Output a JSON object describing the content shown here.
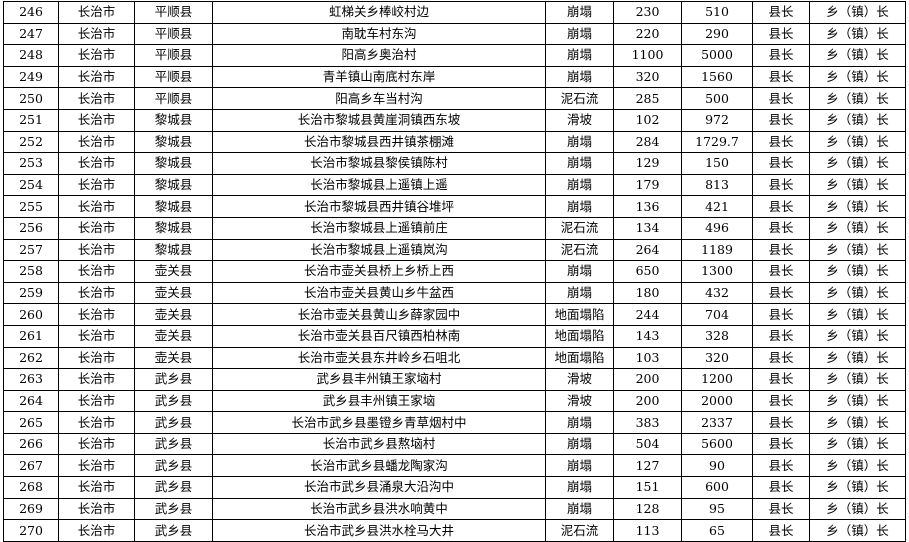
{
  "table": {
    "rows": [
      [
        "246",
        "长治市",
        "平顺县",
        "虹梯关乡棒峧村边",
        "崩塌",
        "230",
        "510",
        "县长",
        "乡（镇）长"
      ],
      [
        "247",
        "长治市",
        "平顺县",
        "南耽车村东沟",
        "崩塌",
        "220",
        "290",
        "县长",
        "乡（镇）长"
      ],
      [
        "248",
        "长治市",
        "平顺县",
        "阳高乡奥治村",
        "崩塌",
        "1100",
        "5000",
        "县长",
        "乡（镇）长"
      ],
      [
        "249",
        "长治市",
        "平顺县",
        "青羊镇山南底村东岸",
        "崩塌",
        "320",
        "1560",
        "县长",
        "乡（镇）长"
      ],
      [
        "250",
        "长治市",
        "平顺县",
        "阳高乡车当村沟",
        "泥石流",
        "285",
        "500",
        "县长",
        "乡（镇）长"
      ],
      [
        "251",
        "长治市",
        "黎城县",
        "长治市黎城县黄崖洞镇西东坡",
        "滑坡",
        "102",
        "972",
        "县长",
        "乡（镇）长"
      ],
      [
        "252",
        "长治市",
        "黎城县",
        "长治市黎城县西井镇茶棚滩",
        "崩塌",
        "284",
        "1729.7",
        "县长",
        "乡（镇）长"
      ],
      [
        "253",
        "长治市",
        "黎城县",
        "长治市黎城县黎侯镇陈村",
        "崩塌",
        "129",
        "150",
        "县长",
        "乡（镇）长"
      ],
      [
        "254",
        "长治市",
        "黎城县",
        "长治市黎城县上遥镇上遥",
        "崩塌",
        "179",
        "813",
        "县长",
        "乡（镇）长"
      ],
      [
        "255",
        "长治市",
        "黎城县",
        "长治市黎城县西井镇谷堆坪",
        "崩塌",
        "136",
        "421",
        "县长",
        "乡（镇）长"
      ],
      [
        "256",
        "长治市",
        "黎城县",
        "长治市黎城县上遥镇前庄",
        "泥石流",
        "134",
        "496",
        "县长",
        "乡（镇）长"
      ],
      [
        "257",
        "长治市",
        "黎城县",
        "长治市黎城县上遥镇岚沟",
        "泥石流",
        "264",
        "1189",
        "县长",
        "乡（镇）长"
      ],
      [
        "258",
        "长治市",
        "壶关县",
        "长治市壶关县桥上乡桥上西",
        "崩塌",
        "650",
        "1300",
        "县长",
        "乡（镇）长"
      ],
      [
        "259",
        "长治市",
        "壶关县",
        "长治市壶关县黄山乡牛盆西",
        "崩塌",
        "180",
        "432",
        "县长",
        "乡（镇）长"
      ],
      [
        "260",
        "长治市",
        "壶关县",
        "长治市壶关县黄山乡薛家园中",
        "地面塌陷",
        "244",
        "704",
        "县长",
        "乡（镇）长"
      ],
      [
        "261",
        "长治市",
        "壶关县",
        "长治市壶关县百尺镇西柏林南",
        "地面塌陷",
        "143",
        "328",
        "县长",
        "乡（镇）长"
      ],
      [
        "262",
        "长治市",
        "壶关县",
        "长治市壶关县东井岭乡石咀北",
        "地面塌陷",
        "103",
        "320",
        "县长",
        "乡（镇）长"
      ],
      [
        "263",
        "长治市",
        "武乡县",
        "武乡县丰州镇王家垴村",
        "滑坡",
        "200",
        "1200",
        "县长",
        "乡（镇）长"
      ],
      [
        "264",
        "长治市",
        "武乡县",
        "武乡县丰州镇王家垴",
        "滑坡",
        "200",
        "2000",
        "县长",
        "乡（镇）长"
      ],
      [
        "265",
        "长治市",
        "武乡县",
        "长治市武乡县墨镫乡青草烟村中",
        "崩塌",
        "383",
        "2337",
        "县长",
        "乡（镇）长"
      ],
      [
        "266",
        "长治市",
        "武乡县",
        "长治市武乡县熬垴村",
        "崩塌",
        "504",
        "5600",
        "县长",
        "乡（镇）长"
      ],
      [
        "267",
        "长治市",
        "武乡县",
        "长治市武乡县蟠龙陶家沟",
        "崩塌",
        "127",
        "90",
        "县长",
        "乡（镇）长"
      ],
      [
        "268",
        "长治市",
        "武乡县",
        "长治市武乡县涌泉大沿沟中",
        "崩塌",
        "151",
        "600",
        "县长",
        "乡（镇）长"
      ],
      [
        "269",
        "长治市",
        "武乡县",
        "长治市武乡县洪水响黄中",
        "崩塌",
        "128",
        "95",
        "县长",
        "乡（镇）长"
      ],
      [
        "270",
        "长治市",
        "武乡县",
        "长治市武乡县洪水栓马大井",
        "泥石流",
        "113",
        "65",
        "县长",
        "乡（镇）长"
      ]
    ]
  }
}
